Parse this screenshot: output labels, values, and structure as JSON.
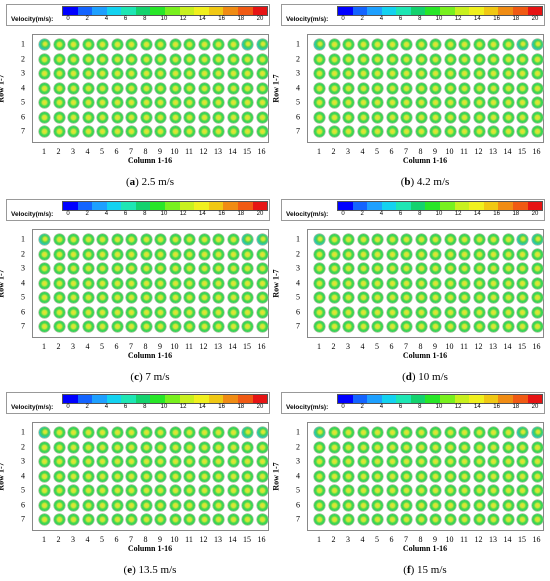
{
  "colorbar": {
    "label": "Velocity(m/s):",
    "colors": [
      "#0000ff",
      "#1464ff",
      "#1ea0ff",
      "#14d2f0",
      "#1ee6b4",
      "#14d26e",
      "#28e628",
      "#78f01e",
      "#c8f01e",
      "#f0f01e",
      "#f0c814",
      "#f08c14",
      "#f05a14",
      "#e61414"
    ],
    "ticks": [
      "0",
      "2",
      "4",
      "6",
      "8",
      "10",
      "12",
      "14",
      "16",
      "18",
      "20"
    ]
  },
  "axes": {
    "ylabel": "Row 1-7",
    "xlabel": "Column 1-16",
    "rows": [
      "1",
      "2",
      "3",
      "4",
      "5",
      "6",
      "7"
    ],
    "cols": [
      "1",
      "2",
      "3",
      "4",
      "5",
      "6",
      "7",
      "8",
      "9",
      "10",
      "11",
      "12",
      "13",
      "14",
      "15",
      "16"
    ]
  },
  "panels": [
    {
      "letter": "a",
      "speed": " 2.5 m/s",
      "open": "(",
      "close": ")"
    },
    {
      "letter": "b",
      "speed": " 4.2 m/s",
      "open": "(",
      "close": ")"
    },
    {
      "letter": "c",
      "speed": " 7 m/s",
      "open": "(",
      "close": ")"
    },
    {
      "letter": "d",
      "speed": " 10 m/s",
      "open": "(",
      "close": ")"
    },
    {
      "letter": "e",
      "speed": " 13.5 m/s",
      "open": "(",
      "close": ")"
    },
    {
      "letter": "f",
      "speed": " 15 m/s",
      "open": "(",
      "close": ")"
    }
  ]
}
